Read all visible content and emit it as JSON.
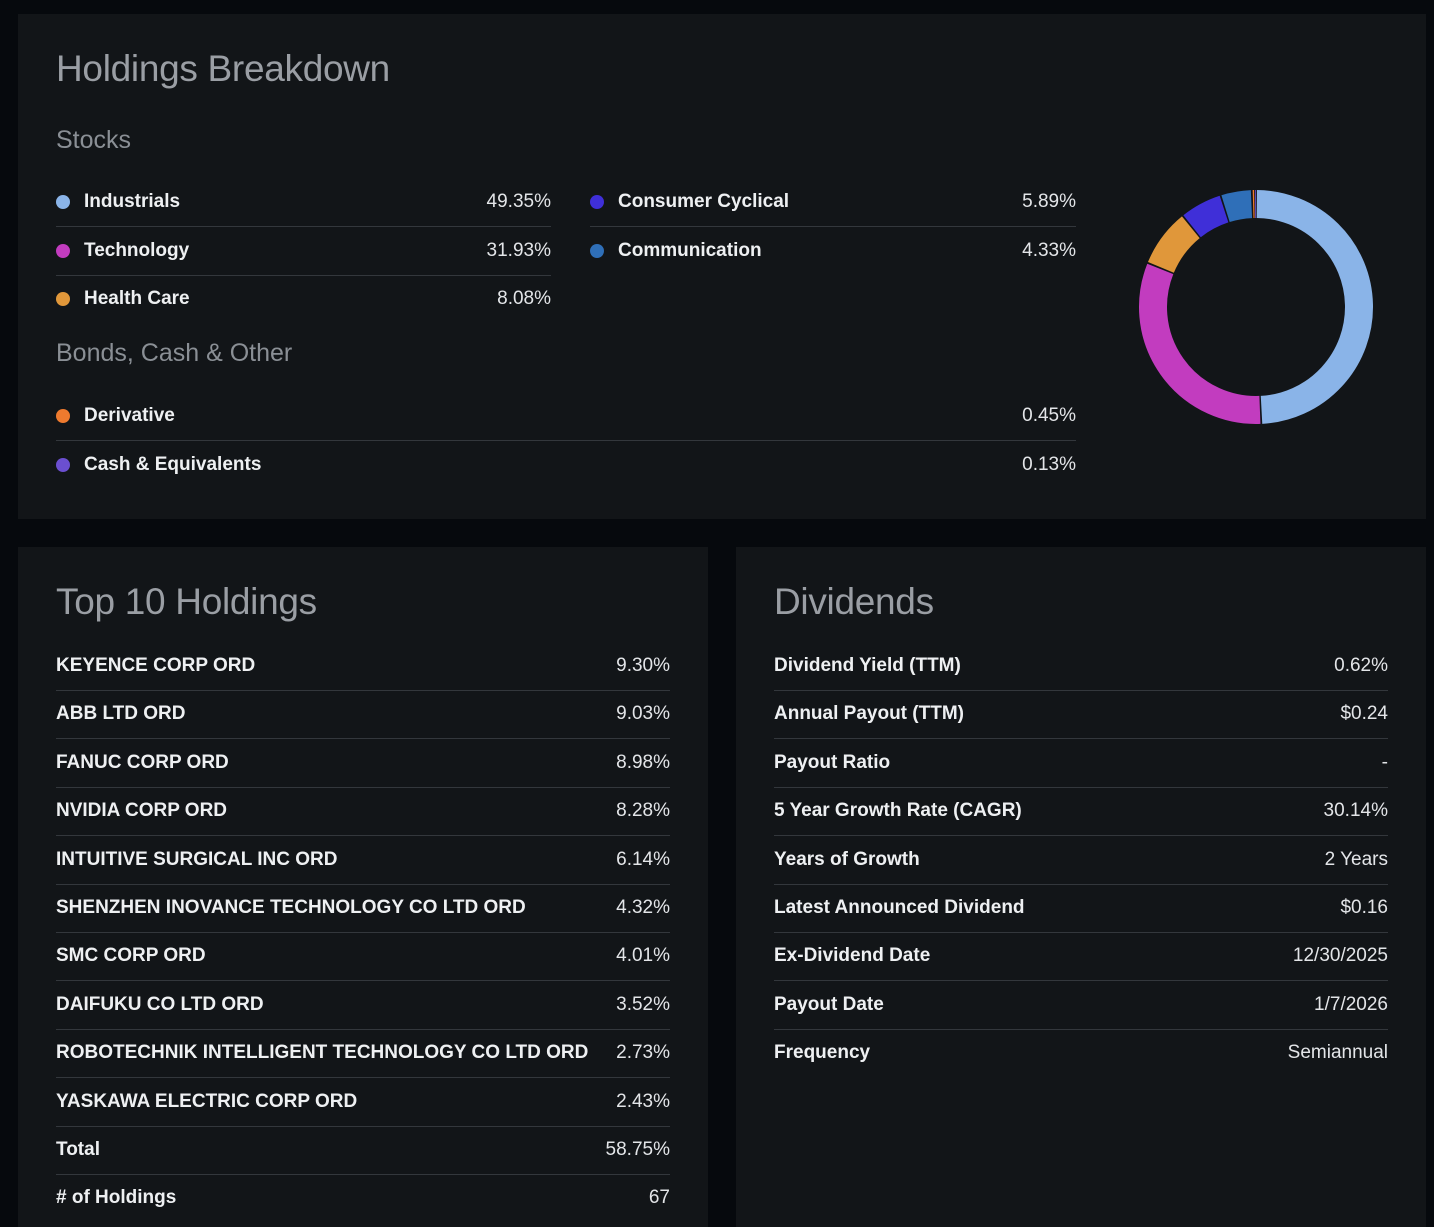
{
  "holdings": {
    "title": "Holdings Breakdown",
    "stocks_label": "Stocks",
    "stocks_left": [
      {
        "name": "Industrials",
        "value": "49.35%",
        "color": "#8ab4e8"
      },
      {
        "name": "Technology",
        "value": "31.93%",
        "color": "#c23cbf"
      },
      {
        "name": "Health Care",
        "value": "8.08%",
        "color": "#e0973a"
      }
    ],
    "stocks_right": [
      {
        "name": "Consumer Cyclical",
        "value": "5.89%",
        "color": "#3f2fd8"
      },
      {
        "name": "Communication",
        "value": "4.33%",
        "color": "#2f6fb8"
      }
    ],
    "other_label": "Bonds, Cash & Other",
    "other": [
      {
        "name": "Derivative",
        "value": "0.45%",
        "color": "#ee7a2e"
      },
      {
        "name": "Cash & Equivalents",
        "value": "0.13%",
        "color": "#6b4fd0"
      }
    ]
  },
  "chart_data": {
    "type": "pie",
    "categories": [
      "Industrials",
      "Technology",
      "Health Care",
      "Consumer Cyclical",
      "Communication",
      "Derivative",
      "Cash & Equivalents"
    ],
    "values": [
      49.35,
      31.93,
      8.08,
      5.89,
      4.33,
      0.45,
      0.13
    ],
    "colors": [
      "#8ab4e8",
      "#c23cbf",
      "#e0973a",
      "#3f2fd8",
      "#2f6fb8",
      "#ee7a2e",
      "#6b4fd0"
    ]
  },
  "top10": {
    "title": "Top 10 Holdings",
    "rows": [
      {
        "name": "KEYENCE CORP ORD",
        "value": "9.30%"
      },
      {
        "name": "ABB LTD ORD",
        "value": "9.03%"
      },
      {
        "name": "FANUC CORP ORD",
        "value": "8.98%"
      },
      {
        "name": "NVIDIA CORP ORD",
        "value": "8.28%"
      },
      {
        "name": "INTUITIVE SURGICAL INC ORD",
        "value": "6.14%"
      },
      {
        "name": "SHENZHEN INOVANCE TECHNOLOGY CO LTD ORD",
        "value": "4.32%"
      },
      {
        "name": "SMC CORP ORD",
        "value": "4.01%"
      },
      {
        "name": "DAIFUKU CO LTD ORD",
        "value": "3.52%"
      },
      {
        "name": "ROBOTECHNIK INTELLIGENT TECHNOLOGY CO LTD ORD",
        "value": "2.73%"
      },
      {
        "name": "YASKAWA ELECTRIC CORP ORD",
        "value": "2.43%"
      },
      {
        "name": "Total",
        "value": "58.75%"
      },
      {
        "name": "# of Holdings",
        "value": "67"
      }
    ]
  },
  "dividends": {
    "title": "Dividends",
    "rows": [
      {
        "name": "Dividend Yield (TTM)",
        "value": "0.62%"
      },
      {
        "name": "Annual Payout (TTM)",
        "value": "$0.24"
      },
      {
        "name": "Payout Ratio",
        "value": "-"
      },
      {
        "name": "5 Year Growth Rate (CAGR)",
        "value": "30.14%"
      },
      {
        "name": "Years of Growth",
        "value": "2 Years"
      },
      {
        "name": "Latest Announced Dividend",
        "value": "$0.16"
      },
      {
        "name": "Ex-Dividend Date",
        "value": "12/30/2025"
      },
      {
        "name": "Payout Date",
        "value": "1/7/2026"
      },
      {
        "name": "Frequency",
        "value": "Semiannual"
      }
    ]
  }
}
